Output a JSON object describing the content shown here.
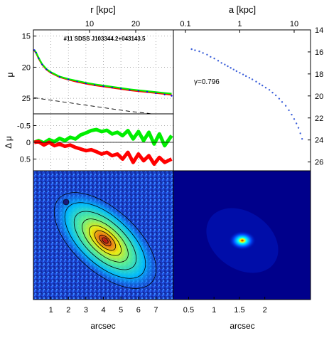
{
  "chart_data": [
    {
      "id": "surface-brightness-profile",
      "type": "line",
      "title": "#11 SDSS J103344.2+043143.5",
      "top_axis_label": "r [kpc]",
      "top_ticks": [
        {
          "value": 10,
          "label": "10"
        },
        {
          "value": 20,
          "label": "20"
        }
      ],
      "ylabel": "μ",
      "ylim": [
        27.5,
        14.0
      ],
      "y_ticks": [
        {
          "value": 15,
          "label": "15"
        },
        {
          "value": 20,
          "label": "20"
        },
        {
          "value": 25,
          "label": "25"
        }
      ],
      "xlim": [
        0.0,
        8.0
      ],
      "grid": true,
      "x": [
        0.05,
        0.15,
        0.3,
        0.5,
        0.75,
        1.0,
        1.5,
        2.0,
        2.5,
        3.0,
        3.5,
        4.0,
        4.5,
        5.0,
        5.5,
        6.0,
        6.5,
        7.0,
        7.5,
        7.9
      ],
      "series": [
        {
          "color": "#ff0000",
          "values": [
            17.3,
            17.7,
            18.6,
            19.6,
            20.4,
            20.9,
            21.6,
            22.0,
            22.35,
            22.65,
            22.9,
            23.1,
            23.3,
            23.5,
            23.7,
            23.85,
            24.0,
            24.15,
            24.3,
            24.45
          ]
        },
        {
          "color": "#00ee00",
          "values": [
            17.2,
            17.6,
            18.5,
            19.5,
            20.3,
            20.8,
            21.5,
            21.9,
            22.2,
            22.5,
            22.75,
            22.95,
            23.15,
            23.35,
            23.55,
            23.7,
            23.85,
            24.0,
            24.15,
            24.25
          ]
        },
        {
          "color": "#0000ff",
          "style": "dots",
          "values": [
            17.25,
            17.65,
            18.55,
            19.55,
            20.35,
            20.85,
            21.55,
            21.95,
            22.3,
            22.6,
            22.85,
            23.05,
            23.25,
            23.45,
            23.65,
            23.8,
            23.95,
            24.2,
            24.4,
            24.6
          ]
        },
        {
          "color": "#000000",
          "style": "dashed",
          "values": [
            24.9,
            24.95,
            25.02,
            25.1,
            25.2,
            25.3,
            25.5,
            25.7,
            25.9,
            26.1,
            26.3,
            26.5,
            26.7,
            26.9,
            27.1,
            27.25,
            27.4,
            27.6,
            27.8,
            27.95
          ]
        }
      ]
    },
    {
      "id": "residuals",
      "type": "line",
      "ylabel": "Δ μ",
      "ylim": [
        -0.85,
        0.85
      ],
      "y_ticks": [
        {
          "value": -0.5,
          "label": "-0.5"
        },
        {
          "value": 0,
          "label": "0"
        },
        {
          "value": 0.5,
          "label": "0.5"
        }
      ],
      "xlim": [
        0.0,
        8.0
      ],
      "grid": true,
      "x": [
        0.05,
        0.3,
        0.6,
        0.9,
        1.2,
        1.5,
        1.8,
        2.1,
        2.4,
        2.7,
        3.0,
        3.3,
        3.6,
        3.9,
        4.2,
        4.5,
        4.8,
        5.1,
        5.4,
        5.7,
        6.0,
        6.3,
        6.6,
        6.9,
        7.2,
        7.5,
        7.9
      ],
      "series": [
        {
          "color": "#00ee00",
          "values": [
            0.0,
            -0.05,
            0.02,
            -0.08,
            -0.02,
            -0.12,
            -0.05,
            -0.15,
            -0.1,
            -0.22,
            -0.28,
            -0.35,
            -0.38,
            -0.32,
            -0.36,
            -0.25,
            -0.3,
            -0.2,
            -0.35,
            -0.1,
            -0.32,
            -0.05,
            -0.3,
            0.05,
            -0.25,
            0.1,
            -0.2
          ]
        },
        {
          "color": "#ff0000",
          "values": [
            0.0,
            -0.02,
            0.08,
            0.0,
            0.1,
            0.05,
            0.12,
            0.08,
            0.15,
            0.2,
            0.25,
            0.22,
            0.28,
            0.35,
            0.3,
            0.4,
            0.35,
            0.5,
            0.3,
            0.6,
            0.35,
            0.55,
            0.4,
            0.65,
            0.45,
            0.6,
            0.5
          ]
        }
      ],
      "xticks": [
        {
          "value": 1,
          "label": "1"
        },
        {
          "value": 2,
          "label": "2"
        },
        {
          "value": 3,
          "label": "3"
        },
        {
          "value": 4,
          "label": "4"
        },
        {
          "value": 5,
          "label": "5"
        },
        {
          "value": 6,
          "label": "6"
        },
        {
          "value": 7,
          "label": "7"
        }
      ]
    },
    {
      "id": "gamma-profile",
      "type": "scatter",
      "top_axis_label": "a [kpc]",
      "xscale": "log",
      "xlim": [
        0.06,
        20
      ],
      "top_ticks": [
        {
          "value": 0.1,
          "label": "0.1"
        },
        {
          "value": 1,
          "label": "1"
        },
        {
          "value": 10,
          "label": "10"
        }
      ],
      "ylim": [
        26.8,
        14.0
      ],
      "y_ticks": [
        {
          "value": 14,
          "label": "14"
        },
        {
          "value": 16,
          "label": "16"
        },
        {
          "value": 18,
          "label": "18"
        },
        {
          "value": 20,
          "label": "20"
        },
        {
          "value": 22,
          "label": "22"
        },
        {
          "value": 24,
          "label": "24"
        },
        {
          "value": 26,
          "label": "26"
        }
      ],
      "annotation": "γ=0.796",
      "series": [
        {
          "color": "#3b5fd9",
          "x": [
            0.13,
            0.15,
            0.18,
            0.21,
            0.25,
            0.29,
            0.34,
            0.4,
            0.46,
            0.53,
            0.6,
            0.68,
            0.77,
            0.87,
            1.0,
            1.15,
            1.3,
            1.5,
            1.7,
            2.0,
            2.3,
            2.6,
            3.0,
            3.5,
            4.0,
            4.6,
            5.3,
            6.0,
            7.0,
            8.0,
            9.0,
            10.0,
            11.0,
            12.0,
            13.0,
            14.0
          ],
          "values": [
            15.75,
            15.85,
            15.95,
            16.1,
            16.25,
            16.45,
            16.6,
            16.8,
            17.0,
            17.15,
            17.3,
            17.45,
            17.6,
            17.75,
            17.9,
            18.05,
            18.2,
            18.35,
            18.5,
            18.7,
            18.9,
            19.05,
            19.25,
            19.45,
            19.7,
            19.95,
            20.25,
            20.55,
            20.9,
            21.3,
            21.7,
            22.1,
            22.5,
            22.9,
            23.4,
            23.9
          ]
        }
      ]
    },
    {
      "id": "galaxy-image",
      "type": "heatmap",
      "xlabel": "arcsec",
      "xlim": [
        0.0,
        8.0
      ],
      "xticks": [
        {
          "value": 1,
          "label": "1"
        },
        {
          "value": 2,
          "label": "2"
        },
        {
          "value": 3,
          "label": "3"
        },
        {
          "value": 4,
          "label": "4"
        },
        {
          "value": 5,
          "label": "5"
        },
        {
          "value": 6,
          "label": "6"
        },
        {
          "value": 7,
          "label": "7"
        }
      ],
      "colormap": [
        "#00008b",
        "#0050ff",
        "#00c8ff",
        "#60ff90",
        "#ffff00",
        "#ff8000",
        "#c00000"
      ]
    },
    {
      "id": "psf-image",
      "type": "heatmap",
      "xlabel": "arcsec",
      "xticks": [
        {
          "value": 0.5,
          "label": "0.5"
        },
        {
          "value": 1,
          "label": "1"
        },
        {
          "value": 1.5,
          "label": "1.5"
        },
        {
          "value": 2,
          "label": "2"
        }
      ],
      "xlim": [
        0.2,
        2.9
      ]
    }
  ]
}
